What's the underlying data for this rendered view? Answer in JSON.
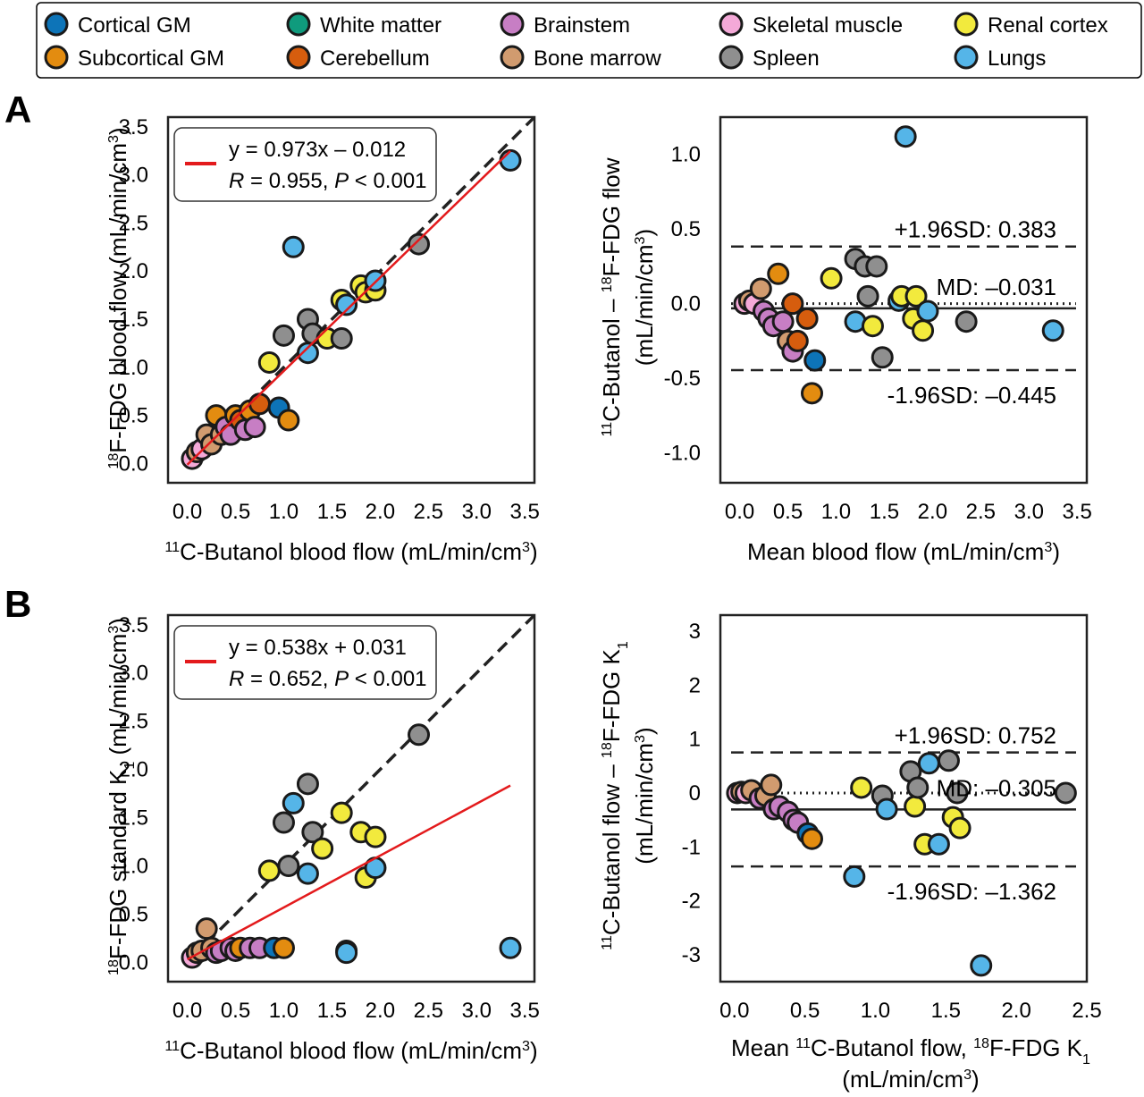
{
  "legend": {
    "entries": [
      {
        "name": "Cortical GM",
        "color": "#0d74b8"
      },
      {
        "name": "White matter",
        "color": "#0f9b7d"
      },
      {
        "name": "Brainstem",
        "color": "#c77ec4"
      },
      {
        "name": "Skeletal muscle",
        "color": "#f4a9d8"
      },
      {
        "name": "Renal cortex",
        "color": "#f2ea3d"
      },
      {
        "name": "Subcortical GM",
        "color": "#e38c10"
      },
      {
        "name": "Cerebellum",
        "color": "#d65d0e"
      },
      {
        "name": "Bone marrow",
        "color": "#d19b6f"
      },
      {
        "name": "Spleen",
        "color": "#8f8f8f"
      },
      {
        "name": "Lungs",
        "color": "#55b5e8"
      }
    ]
  },
  "panel_labels": {
    "a": "A",
    "b": "B"
  },
  "chart_data": [
    {
      "id": "a_corr",
      "type": "scatter",
      "xlabel_parts": [
        "11",
        "C-Butanol blood flow (mL/min/cm",
        "3",
        ")"
      ],
      "ylabel_parts": [
        "18",
        "F-FDG blood flow (mL/min/cm",
        "3",
        ")"
      ],
      "xlim": [
        -0.2,
        3.6
      ],
      "ylim": [
        -0.2,
        3.6
      ],
      "xticks": [
        "0.0",
        "0.5",
        "1.0",
        "1.5",
        "2.0",
        "2.5",
        "3.0",
        "3.5"
      ],
      "yticks": [
        "0.0",
        "0.5",
        "1.0",
        "1.5",
        "2.0",
        "2.5",
        "3.0",
        "3.5"
      ],
      "identity_line": true,
      "fit": {
        "slope": 0.973,
        "intercept": -0.012,
        "x_range": [
          0,
          3.35
        ]
      },
      "fit_color": "#e31a1c",
      "legend_eq": "y = 0.973x – 0.012",
      "legend_r": "R",
      "legend_r_val": " = 0.955, ",
      "legend_p": "P",
      "legend_p_val": " < 0.001",
      "points": [
        {
          "x": 0.05,
          "y": 0.05,
          "g": "Skeletal muscle"
        },
        {
          "x": 0.1,
          "y": 0.12,
          "g": "Bone marrow"
        },
        {
          "x": 0.15,
          "y": 0.15,
          "g": "Skeletal muscle"
        },
        {
          "x": 0.2,
          "y": 0.3,
          "g": "Bone marrow"
        },
        {
          "x": 0.25,
          "y": 0.2,
          "g": "Bone marrow"
        },
        {
          "x": 0.3,
          "y": 0.5,
          "g": "Subcortical GM"
        },
        {
          "x": 0.35,
          "y": 0.3,
          "g": "Bone marrow"
        },
        {
          "x": 0.4,
          "y": 0.38,
          "g": "Brainstem"
        },
        {
          "x": 0.45,
          "y": 0.3,
          "g": "Brainstem"
        },
        {
          "x": 0.5,
          "y": 0.5,
          "g": "Subcortical GM"
        },
        {
          "x": 0.55,
          "y": 0.45,
          "g": "Cerebellum"
        },
        {
          "x": 0.6,
          "y": 0.35,
          "g": "Brainstem"
        },
        {
          "x": 0.65,
          "y": 0.55,
          "g": "Subcortical GM"
        },
        {
          "x": 0.7,
          "y": 0.38,
          "g": "Brainstem"
        },
        {
          "x": 0.75,
          "y": 0.62,
          "g": "Cerebellum"
        },
        {
          "x": 0.85,
          "y": 1.05,
          "g": "Renal cortex"
        },
        {
          "x": 0.95,
          "y": 0.58,
          "g": "Cortical GM"
        },
        {
          "x": 1.05,
          "y": 0.45,
          "g": "Subcortical GM"
        },
        {
          "x": 1.1,
          "y": 2.25,
          "g": "Lungs"
        },
        {
          "x": 1.0,
          "y": 1.33,
          "g": "Spleen"
        },
        {
          "x": 1.25,
          "y": 1.5,
          "g": "Spleen"
        },
        {
          "x": 1.25,
          "y": 1.15,
          "g": "Lungs"
        },
        {
          "x": 1.3,
          "y": 1.35,
          "g": "Spleen"
        },
        {
          "x": 1.45,
          "y": 1.3,
          "g": "Renal cortex"
        },
        {
          "x": 1.6,
          "y": 1.3,
          "g": "Spleen"
        },
        {
          "x": 1.6,
          "y": 1.7,
          "g": "Renal cortex"
        },
        {
          "x": 1.65,
          "y": 1.65,
          "g": "Lungs"
        },
        {
          "x": 1.8,
          "y": 1.85,
          "g": "Renal cortex"
        },
        {
          "x": 1.85,
          "y": 1.78,
          "g": "Renal cortex"
        },
        {
          "x": 1.95,
          "y": 1.8,
          "g": "Renal cortex"
        },
        {
          "x": 1.95,
          "y": 1.9,
          "g": "Lungs"
        },
        {
          "x": 2.4,
          "y": 2.28,
          "g": "Spleen"
        },
        {
          "x": 3.35,
          "y": 3.15,
          "g": "Lungs"
        }
      ]
    },
    {
      "id": "a_ba",
      "type": "scatter",
      "xlabel_parts": [
        "",
        "Mean blood flow (mL/min/cm",
        "3",
        ")"
      ],
      "ylabel_line1_parts": [
        "11",
        "C-Butanol – ",
        "18",
        "F-FDG flow"
      ],
      "ylabel_line2_parts": [
        "(mL/min/cm",
        "3",
        ")"
      ],
      "xlim": [
        -0.2,
        3.6
      ],
      "ylim": [
        -1.2,
        1.25
      ],
      "xticks": [
        "0.0",
        "0.5",
        "1.0",
        "1.5",
        "2.0",
        "2.5",
        "3.0",
        "3.5"
      ],
      "yticks": [
        "-1.0",
        "-0.5",
        "0.0",
        "0.5",
        "1.0"
      ],
      "md": -0.031,
      "upper": 0.383,
      "lower": -0.445,
      "upper_label": "+1.96SD: 0.383",
      "lower_label": "-1.96SD: –0.445",
      "md_label": "MD: –0.031",
      "points": [
        {
          "x": 0.05,
          "y": 0.0,
          "g": "Skeletal muscle"
        },
        {
          "x": 0.1,
          "y": 0.02,
          "g": "Bone marrow"
        },
        {
          "x": 0.15,
          "y": 0.0,
          "g": "Skeletal muscle"
        },
        {
          "x": 0.22,
          "y": 0.1,
          "g": "Bone marrow"
        },
        {
          "x": 0.25,
          "y": -0.05,
          "g": "Brainstem"
        },
        {
          "x": 0.3,
          "y": -0.1,
          "g": "Brainstem"
        },
        {
          "x": 0.35,
          "y": -0.15,
          "g": "Brainstem"
        },
        {
          "x": 0.4,
          "y": 0.2,
          "g": "Subcortical GM"
        },
        {
          "x": 0.45,
          "y": -0.12,
          "g": "Brainstem"
        },
        {
          "x": 0.5,
          "y": -0.25,
          "g": "Bone marrow"
        },
        {
          "x": 0.55,
          "y": -0.32,
          "g": "Brainstem"
        },
        {
          "x": 0.55,
          "y": 0.0,
          "g": "Cerebellum"
        },
        {
          "x": 0.6,
          "y": -0.25,
          "g": "Cerebellum"
        },
        {
          "x": 0.7,
          "y": -0.1,
          "g": "Cerebellum"
        },
        {
          "x": 0.75,
          "y": -0.6,
          "g": "Subcortical GM"
        },
        {
          "x": 0.78,
          "y": -0.38,
          "g": "Cortical GM"
        },
        {
          "x": 0.95,
          "y": 0.17,
          "g": "Renal cortex"
        },
        {
          "x": 1.2,
          "y": 0.3,
          "g": "Spleen"
        },
        {
          "x": 1.2,
          "y": -0.12,
          "g": "Lungs"
        },
        {
          "x": 1.3,
          "y": 0.25,
          "g": "Spleen"
        },
        {
          "x": 1.33,
          "y": 0.05,
          "g": "Spleen"
        },
        {
          "x": 1.38,
          "y": -0.15,
          "g": "Renal cortex"
        },
        {
          "x": 1.42,
          "y": 0.25,
          "g": "Spleen"
        },
        {
          "x": 1.48,
          "y": -0.36,
          "g": "Spleen"
        },
        {
          "x": 1.65,
          "y": 0.02,
          "g": "Lungs"
        },
        {
          "x": 1.68,
          "y": 0.05,
          "g": "Renal cortex"
        },
        {
          "x": 1.72,
          "y": 1.12,
          "g": "Lungs"
        },
        {
          "x": 1.8,
          "y": -0.1,
          "g": "Renal cortex"
        },
        {
          "x": 1.83,
          "y": 0.05,
          "g": "Renal cortex"
        },
        {
          "x": 1.9,
          "y": -0.18,
          "g": "Renal cortex"
        },
        {
          "x": 1.95,
          "y": -0.05,
          "g": "Lungs"
        },
        {
          "x": 2.35,
          "y": -0.12,
          "g": "Spleen"
        },
        {
          "x": 3.25,
          "y": -0.18,
          "g": "Lungs"
        }
      ]
    },
    {
      "id": "b_corr",
      "type": "scatter",
      "xlabel_parts": [
        "11",
        "C-Butanol blood flow (mL/min/cm",
        "3",
        ")"
      ],
      "ylabel_parts": [
        "18",
        "F-FDG standard K",
        "1",
        " (mL/min/cm",
        "3",
        ")"
      ],
      "xlim": [
        -0.2,
        3.6
      ],
      "ylim": [
        -0.2,
        3.6
      ],
      "xticks": [
        "0.0",
        "0.5",
        "1.0",
        "1.5",
        "2.0",
        "2.5",
        "3.0",
        "3.5"
      ],
      "yticks": [
        "0.0",
        "0.5",
        "1.0",
        "1.5",
        "2.0",
        "2.5",
        "3.0",
        "3.5"
      ],
      "identity_line": true,
      "fit": {
        "slope": 0.538,
        "intercept": 0.031,
        "x_range": [
          0,
          3.35
        ]
      },
      "fit_color": "#e31a1c",
      "legend_eq": "y = 0.538x + 0.031",
      "legend_r": "R",
      "legend_r_val": " = 0.652, ",
      "legend_p": "P",
      "legend_p_val": " < 0.001",
      "points": [
        {
          "x": 0.05,
          "y": 0.05,
          "g": "Skeletal muscle"
        },
        {
          "x": 0.1,
          "y": 0.1,
          "g": "Bone marrow"
        },
        {
          "x": 0.15,
          "y": 0.12,
          "g": "Bone marrow"
        },
        {
          "x": 0.2,
          "y": 0.35,
          "g": "Bone marrow"
        },
        {
          "x": 0.25,
          "y": 0.15,
          "g": "Bone marrow"
        },
        {
          "x": 0.3,
          "y": 0.1,
          "g": "Brainstem"
        },
        {
          "x": 0.35,
          "y": 0.12,
          "g": "Brainstem"
        },
        {
          "x": 0.45,
          "y": 0.15,
          "g": "Brainstem"
        },
        {
          "x": 0.5,
          "y": 0.12,
          "g": "Brainstem"
        },
        {
          "x": 0.55,
          "y": 0.15,
          "g": "Subcortical GM"
        },
        {
          "x": 0.65,
          "y": 0.15,
          "g": "Brainstem"
        },
        {
          "x": 0.75,
          "y": 0.15,
          "g": "Brainstem"
        },
        {
          "x": 0.85,
          "y": 0.95,
          "g": "Renal cortex"
        },
        {
          "x": 0.9,
          "y": 0.15,
          "g": "Cortical GM"
        },
        {
          "x": 1.0,
          "y": 0.15,
          "g": "Subcortical GM"
        },
        {
          "x": 1.05,
          "y": 1.0,
          "g": "Spleen"
        },
        {
          "x": 1.0,
          "y": 1.45,
          "g": "Spleen"
        },
        {
          "x": 1.1,
          "y": 1.65,
          "g": "Lungs"
        },
        {
          "x": 1.25,
          "y": 1.85,
          "g": "Spleen"
        },
        {
          "x": 1.3,
          "y": 1.35,
          "g": "Spleen"
        },
        {
          "x": 1.25,
          "y": 0.92,
          "g": "Lungs"
        },
        {
          "x": 1.4,
          "y": 1.18,
          "g": "Renal cortex"
        },
        {
          "x": 1.6,
          "y": 1.55,
          "g": "Renal cortex"
        },
        {
          "x": 1.65,
          "y": 0.12,
          "g": "Lungs"
        },
        {
          "x": 1.65,
          "y": 0.1,
          "g": "Lungs"
        },
        {
          "x": 1.8,
          "y": 1.35,
          "g": "Renal cortex"
        },
        {
          "x": 1.85,
          "y": 0.88,
          "g": "Renal cortex"
        },
        {
          "x": 1.95,
          "y": 1.3,
          "g": "Renal cortex"
        },
        {
          "x": 1.95,
          "y": 0.98,
          "g": "Lungs"
        },
        {
          "x": 2.4,
          "y": 2.36,
          "g": "Spleen"
        },
        {
          "x": 3.35,
          "y": 0.15,
          "g": "Lungs"
        }
      ]
    },
    {
      "id": "b_ba",
      "type": "scatter",
      "xlabel_line1_parts": [
        "Mean ",
        "11",
        "C-Butanol flow, ",
        "18",
        "F-FDG K",
        "1"
      ],
      "xlabel_line2_parts": [
        "(mL/min/cm",
        "3",
        ")"
      ],
      "ylabel_line1_parts": [
        "11",
        "C-Butanol flow – ",
        "18",
        "F-FDG K",
        "1"
      ],
      "ylabel_line2_parts": [
        "(mL/min/cm",
        "3",
        ")"
      ],
      "xlim": [
        -0.1,
        2.5
      ],
      "ylim": [
        -3.5,
        3.3
      ],
      "xticks": [
        "0.0",
        "0.5",
        "1.0",
        "1.5",
        "2.0",
        "2.5"
      ],
      "yticks": [
        "-3",
        "-2",
        "-1",
        "0",
        "1",
        "2",
        "3"
      ],
      "md": -0.305,
      "upper": 0.752,
      "lower": -1.362,
      "upper_label": "+1.96SD: 0.752",
      "lower_label": "-1.96SD: –1.362",
      "md_label": "MD: –0.305",
      "points": [
        {
          "x": 0.02,
          "y": 0.0,
          "g": "Skeletal muscle"
        },
        {
          "x": 0.05,
          "y": 0.02,
          "g": "Bone marrow"
        },
        {
          "x": 0.08,
          "y": 0.0,
          "g": "Skeletal muscle"
        },
        {
          "x": 0.12,
          "y": 0.05,
          "g": "Bone marrow"
        },
        {
          "x": 0.18,
          "y": -0.1,
          "g": "Brainstem"
        },
        {
          "x": 0.22,
          "y": -0.05,
          "g": "Bone marrow"
        },
        {
          "x": 0.26,
          "y": 0.15,
          "g": "Bone marrow"
        },
        {
          "x": 0.28,
          "y": -0.3,
          "g": "Brainstem"
        },
        {
          "x": 0.32,
          "y": -0.25,
          "g": "Brainstem"
        },
        {
          "x": 0.38,
          "y": -0.35,
          "g": "Brainstem"
        },
        {
          "x": 0.42,
          "y": -0.5,
          "g": "Brainstem"
        },
        {
          "x": 0.45,
          "y": -0.55,
          "g": "Brainstem"
        },
        {
          "x": 0.52,
          "y": -0.75,
          "g": "Cortical GM"
        },
        {
          "x": 0.55,
          "y": -0.85,
          "g": "Subcortical GM"
        },
        {
          "x": 0.85,
          "y": -1.55,
          "g": "Lungs"
        },
        {
          "x": 0.9,
          "y": 0.1,
          "g": "Renal cortex"
        },
        {
          "x": 1.05,
          "y": -0.05,
          "g": "Spleen"
        },
        {
          "x": 1.08,
          "y": -0.3,
          "g": "Lungs"
        },
        {
          "x": 1.25,
          "y": 0.4,
          "g": "Spleen"
        },
        {
          "x": 1.28,
          "y": -0.25,
          "g": "Renal cortex"
        },
        {
          "x": 1.3,
          "y": 0.1,
          "g": "Spleen"
        },
        {
          "x": 1.35,
          "y": -0.95,
          "g": "Renal cortex"
        },
        {
          "x": 1.38,
          "y": 0.55,
          "g": "Lungs"
        },
        {
          "x": 1.45,
          "y": -0.95,
          "g": "Lungs"
        },
        {
          "x": 1.52,
          "y": 0.6,
          "g": "Spleen"
        },
        {
          "x": 1.55,
          "y": -0.45,
          "g": "Renal cortex"
        },
        {
          "x": 1.6,
          "y": -0.65,
          "g": "Renal cortex"
        },
        {
          "x": 1.58,
          "y": 0.0,
          "g": "Spleen"
        },
        {
          "x": 1.75,
          "y": -3.2,
          "g": "Lungs"
        },
        {
          "x": 2.35,
          "y": 0.0,
          "g": "Spleen"
        }
      ]
    }
  ]
}
